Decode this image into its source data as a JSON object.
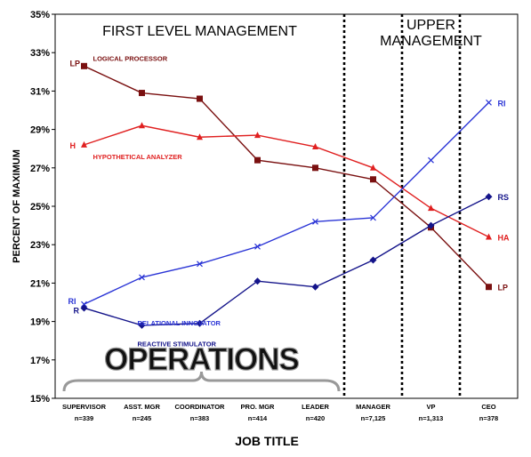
{
  "chart_data": {
    "type": "line",
    "xlabel": "JOB TITLE",
    "ylabel": "PERCENT OF MAXIMUM",
    "ylim": [
      15,
      35
    ],
    "yticks": [
      "15%",
      "17%",
      "19%",
      "21%",
      "23%",
      "25%",
      "27%",
      "29%",
      "31%",
      "33%",
      "35%"
    ],
    "categories": [
      "SUPERVISOR",
      "ASST. MGR",
      "COORDINATOR",
      "PRO. MGR",
      "LEADER",
      "MANAGER",
      "VP",
      "CEO"
    ],
    "sample_sizes": [
      "n=339",
      "n=245",
      "n=383",
      "n=414",
      "n=420",
      "n=7,125",
      "n=1,313",
      "n=378"
    ],
    "grid": false,
    "regions": [
      {
        "label": "FIRST LEVEL MANAGEMENT",
        "lines": [
          "FIRST LEVEL MANAGEMENT"
        ]
      },
      {
        "label": "UPPER MANAGEMENT",
        "lines": [
          "UPPER",
          "MANAGEMENT"
        ]
      }
    ],
    "dividers_after_category": [
      4,
      5,
      6
    ],
    "bracket_label": "OPERATIONS",
    "series": [
      {
        "name": "LOGICAL PROCESSOR",
        "start_label": "LP",
        "end_label": "LP",
        "color": "#7a1010",
        "marker": "square",
        "values": [
          32.3,
          30.9,
          30.6,
          27.4,
          27.0,
          26.4,
          23.9,
          20.8
        ]
      },
      {
        "name": "HYPOTHETICAL ANALYZER",
        "start_label": "H",
        "end_label": "HA",
        "color": "#e02020",
        "marker": "triangle",
        "values": [
          28.2,
          29.2,
          28.6,
          28.7,
          28.1,
          27.0,
          24.9,
          23.4
        ]
      },
      {
        "name": "RELATIONAL INNOVATOR",
        "start_label": "RI",
        "end_label": "RI",
        "color": "#2b35d6",
        "marker": "x",
        "values": [
          19.9,
          21.3,
          22.0,
          22.9,
          24.2,
          24.4,
          27.4,
          30.4
        ]
      },
      {
        "name": "REACTIVE STIMULATOR",
        "start_label": "R",
        "end_label": "RS",
        "color": "#14148a",
        "marker": "diamond",
        "values": [
          19.7,
          18.8,
          18.9,
          21.1,
          20.8,
          22.2,
          24.0,
          25.5
        ]
      }
    ]
  }
}
